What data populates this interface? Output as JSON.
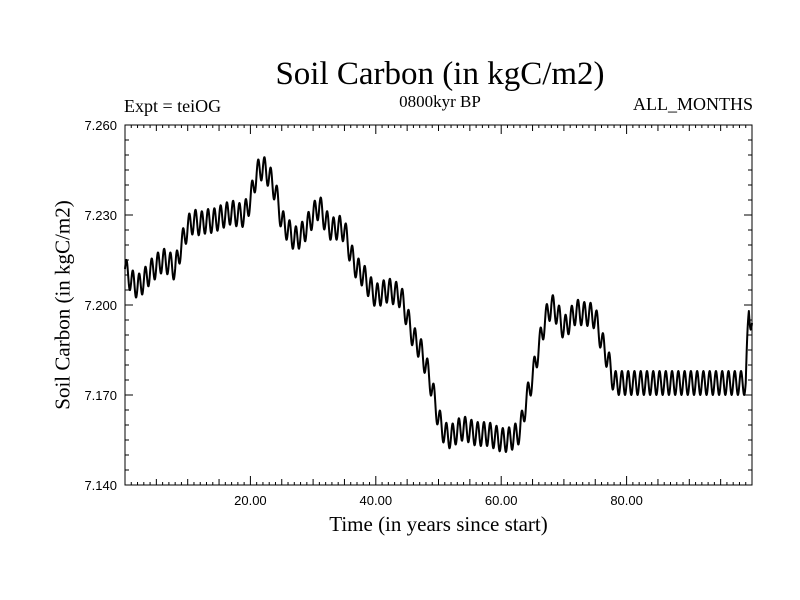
{
  "chart_data": {
    "type": "line",
    "title": "Soil Carbon (in kgC/m2)",
    "subtitle_left": "Expt = teiOG",
    "subtitle_center": "0800kyr BP",
    "subtitle_right": "ALL_MONTHS",
    "xlabel": "Time (in years since start)",
    "ylabel": "Soil Carbon (in kgC/m2)",
    "xlim": [
      0,
      100
    ],
    "ylim": [
      7.14,
      7.26
    ],
    "x_ticks": [
      20,
      40,
      60,
      80
    ],
    "x_tick_labels": [
      "20.00",
      "40.00",
      "60.00",
      "80.00"
    ],
    "y_ticks": [
      7.14,
      7.17,
      7.2,
      7.23,
      7.26
    ],
    "y_tick_labels": [
      "7.140",
      "7.170",
      "7.200",
      "7.230",
      "7.260"
    ],
    "grid": false,
    "series": [
      {
        "name": "Soil Carbon",
        "seasonal_amplitude": 0.004,
        "annual_mean": {
          "x": [
            0,
            1,
            2,
            3,
            4,
            5,
            6,
            7,
            8,
            9,
            10,
            11,
            12,
            13,
            14,
            15,
            16,
            17,
            18,
            19,
            20,
            21,
            22,
            23,
            24,
            25,
            26,
            27,
            28,
            29,
            30,
            31,
            32,
            33,
            34,
            35,
            36,
            37,
            38,
            39,
            40,
            41,
            42,
            43,
            44,
            45,
            46,
            47,
            48,
            49,
            50,
            51,
            52,
            53,
            54,
            55,
            56,
            57,
            58,
            59,
            60,
            61,
            62,
            63,
            64,
            65,
            66,
            67,
            68,
            69,
            70,
            71,
            72,
            73,
            74,
            75,
            76,
            77,
            78,
            79,
            80,
            81,
            82,
            83,
            84,
            85,
            86,
            87,
            88,
            89,
            90,
            91,
            92,
            93,
            94,
            95,
            96,
            97,
            98,
            99,
            99.5,
            100
          ],
          "y": [
            7.212,
            7.208,
            7.206,
            7.208,
            7.211,
            7.213,
            7.215,
            7.214,
            7.212,
            7.22,
            7.226,
            7.228,
            7.227,
            7.228,
            7.228,
            7.229,
            7.23,
            7.231,
            7.23,
            7.23,
            7.235,
            7.244,
            7.246,
            7.243,
            7.238,
            7.228,
            7.225,
            7.222,
            7.223,
            7.226,
            7.23,
            7.233,
            7.228,
            7.225,
            7.226,
            7.225,
            7.217,
            7.212,
            7.21,
            7.206,
            7.203,
            7.204,
            7.205,
            7.204,
            7.203,
            7.196,
            7.189,
            7.186,
            7.18,
            7.172,
            7.162,
            7.157,
            7.156,
            7.158,
            7.159,
            7.158,
            7.157,
            7.157,
            7.157,
            7.156,
            7.155,
            7.155,
            7.156,
            7.158,
            7.168,
            7.176,
            7.186,
            7.195,
            7.2,
            7.197,
            7.192,
            7.195,
            7.198,
            7.197,
            7.197,
            7.196,
            7.188,
            7.182,
            7.174,
            7.174,
            7.174,
            7.174,
            7.174,
            7.174,
            7.174,
            7.174,
            7.174,
            7.174,
            7.174,
            7.174,
            7.174,
            7.174,
            7.174,
            7.174,
            7.174,
            7.174,
            7.174,
            7.174,
            7.174,
            7.174,
            7.198,
            7.194
          ]
        }
      }
    ]
  }
}
